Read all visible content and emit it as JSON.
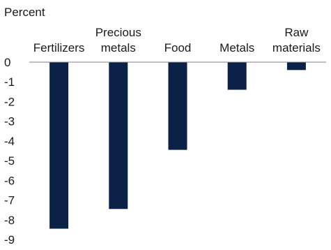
{
  "chart_data": {
    "type": "bar",
    "ylabel": "Percent",
    "categories": [
      [
        "Fertilizers"
      ],
      [
        "Precious",
        "metals"
      ],
      [
        "Food"
      ],
      [
        "Metals"
      ],
      [
        "Raw",
        "materials"
      ]
    ],
    "values": [
      -8.45,
      -7.45,
      -4.45,
      -1.4,
      -0.4
    ],
    "ylim": [
      -9,
      0
    ],
    "yticks": [
      0,
      -1,
      -2,
      -3,
      -4,
      -5,
      -6,
      -7,
      -8,
      -9
    ],
    "grid": false,
    "bar_color": "#0b2145",
    "axis_color": "#7f7f7f",
    "text_color": "#1a1a1a"
  }
}
